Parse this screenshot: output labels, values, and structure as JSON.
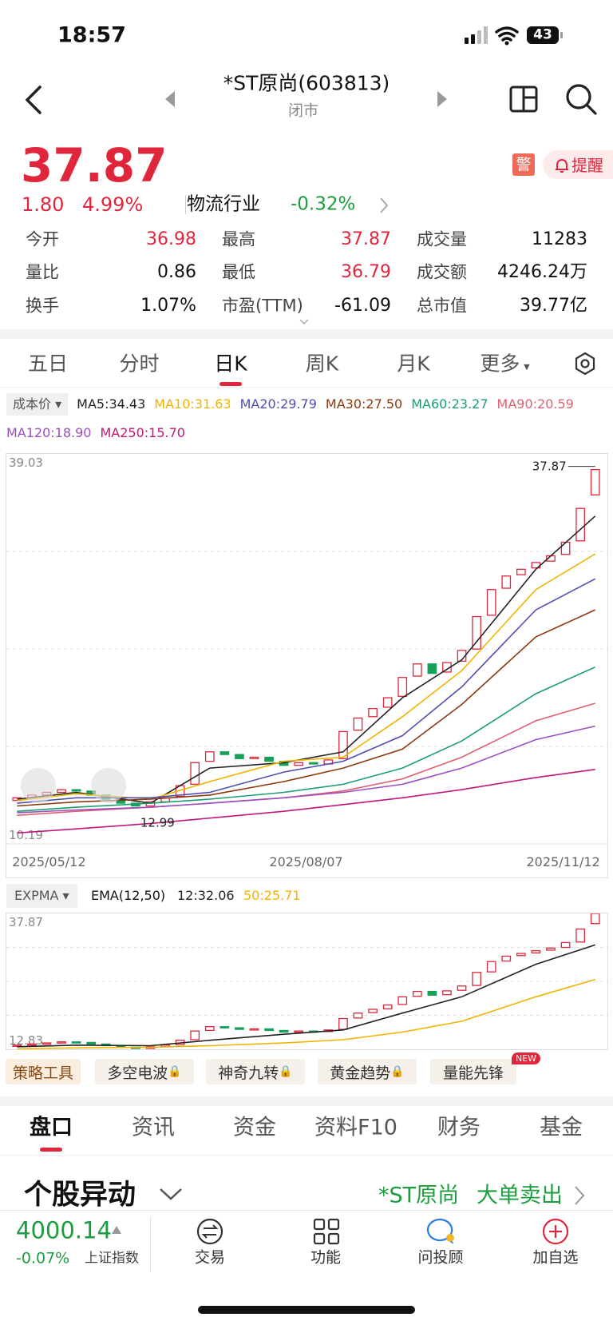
{
  "status": {
    "time": "18:57",
    "battery": "43"
  },
  "nav": {
    "title": "*ST原尚(603813)",
    "subtitle": "闭市"
  },
  "quote": {
    "price": "37.87",
    "change": "1.80",
    "pct": "4.99%",
    "industry": "物流行业",
    "industry_pct": "-0.32%",
    "alert": "警",
    "remind": "提醒"
  },
  "stats": [
    {
      "label": "今开",
      "value": "36.98",
      "color": "#e0263a"
    },
    {
      "label": "最高",
      "value": "37.87",
      "color": "#e0263a"
    },
    {
      "label": "成交量",
      "value": "11283",
      "color": "#111111"
    },
    {
      "label": "量比",
      "value": "0.86",
      "color": "#111111"
    },
    {
      "label": "最低",
      "value": "36.79",
      "color": "#e0263a"
    },
    {
      "label": "成交额",
      "value": "4246.24万",
      "color": "#111111"
    },
    {
      "label": "换手",
      "value": "1.07%",
      "color": "#111111"
    },
    {
      "label": "市盈(TTM)",
      "value": "-61.09",
      "color": "#111111"
    },
    {
      "label": "总市值",
      "value": "39.77亿",
      "color": "#111111"
    }
  ],
  "periods": [
    {
      "label": "五日"
    },
    {
      "label": "分时"
    },
    {
      "label": "日K"
    },
    {
      "label": "周K"
    },
    {
      "label": "月K"
    },
    {
      "label": "更多",
      "dropdown": true
    }
  ],
  "active_period": 2,
  "ma_legend": {
    "selector": "成本价",
    "items": [
      "MA5:34.43",
      "MA10:31.63",
      "MA20:29.79",
      "MA30:27.50",
      "MA60:23.27",
      "MA90:20.59",
      "MA120:18.90",
      "MA250:15.70"
    ]
  },
  "main_chart": {
    "type": "candlestick",
    "ylim": [
      10.19,
      39.03
    ],
    "yticks": [
      39.03,
      10.19
    ],
    "xticks": [
      {
        "value": 0,
        "label": "2025/05/12"
      },
      {
        "value": 19.5,
        "label": "2025/08/07"
      },
      {
        "value": 39,
        "label": "2025/11/12"
      }
    ],
    "annotations": {
      "high": "37.87",
      "low": "12.99"
    },
    "open": [
      13.4,
      13.6,
      13.8,
      14.0,
      14.2,
      14.1,
      13.8,
      13.5,
      13.2,
      13.0,
      13.3,
      13.7,
      14.6,
      16.3,
      17.0,
      16.8,
      16.5,
      16.6,
      16.3,
      16.0,
      16.2,
      16.1,
      16.5,
      18.6,
      19.6,
      20.3,
      21.1,
      22.6,
      23.5,
      22.9,
      23.7,
      24.6,
      27.1,
      29.1,
      30.1,
      30.6,
      31.1,
      31.6,
      32.6,
      36.0
    ],
    "close": [
      13.6,
      13.8,
      14.0,
      14.2,
      14.1,
      13.8,
      13.5,
      13.2,
      13.0,
      13.3,
      13.6,
      14.5,
      16.2,
      17.0,
      16.8,
      16.5,
      16.6,
      16.3,
      16.0,
      16.2,
      16.1,
      16.4,
      18.5,
      19.5,
      20.2,
      21.0,
      22.5,
      23.5,
      22.8,
      23.6,
      24.5,
      27.0,
      29.0,
      30.0,
      30.5,
      31.0,
      31.5,
      32.5,
      35.0,
      37.87
    ],
    "line_x": [
      0,
      4,
      9,
      13,
      18,
      22,
      26,
      30,
      35,
      39
    ],
    "series": [
      {
        "name": "MA5",
        "color": "#222222",
        "values": [
          13.5,
          14.0,
          13.2,
          15.8,
          16.2,
          17.0,
          21.0,
          23.8,
          30.5,
          34.43
        ]
      },
      {
        "name": "MA10",
        "color": "#f0b400",
        "values": [
          13.4,
          13.9,
          13.5,
          14.8,
          16.3,
          16.6,
          19.6,
          23.0,
          29.0,
          31.63
        ]
      },
      {
        "name": "MA20",
        "color": "#4f4fb3",
        "values": [
          13.2,
          13.6,
          13.6,
          14.0,
          15.5,
          16.3,
          18.2,
          21.8,
          27.5,
          29.79
        ]
      },
      {
        "name": "MA30",
        "color": "#8b3a0e",
        "values": [
          13.0,
          13.3,
          13.5,
          13.8,
          14.8,
          15.8,
          17.2,
          20.5,
          25.5,
          27.5
        ]
      },
      {
        "name": "MA60",
        "color": "#1a9e6e",
        "values": [
          12.6,
          12.9,
          13.2,
          13.5,
          14.0,
          14.6,
          15.8,
          17.8,
          21.3,
          23.27
        ]
      },
      {
        "name": "MA90",
        "color": "#e06070",
        "values": [
          12.3,
          12.6,
          12.9,
          13.2,
          13.6,
          14.1,
          15.0,
          16.6,
          19.3,
          20.59
        ]
      },
      {
        "name": "MA120",
        "color": "#9a4fc0",
        "values": [
          12.5,
          12.7,
          12.9,
          13.2,
          13.6,
          14.0,
          14.6,
          15.8,
          17.9,
          18.9
        ]
      },
      {
        "name": "MA250",
        "color": "#c0187a",
        "values": [
          11.0,
          11.3,
          11.7,
          12.1,
          12.6,
          13.1,
          13.6,
          14.2,
          15.1,
          15.7
        ]
      }
    ]
  },
  "sub_chart": {
    "selector": "EXPMA",
    "legend": {
      "title": "EMA(12,50)",
      "items": [
        "12:32.06",
        "50:25.71"
      ]
    },
    "ylim": [
      12.83,
      37.87
    ],
    "yticks": [
      37.87,
      12.83
    ],
    "series": [
      {
        "color": "#222222",
        "values": [
          13.3,
          13.6,
          13.5,
          14.5,
          15.6,
          16.4,
          19.5,
          22.5,
          28.5,
          32.06
        ]
      },
      {
        "color": "#f0b400",
        "values": [
          12.9,
          13.1,
          13.2,
          13.5,
          14.0,
          14.6,
          16.0,
          18.0,
          22.5,
          25.71
        ]
      }
    ]
  },
  "tools": [
    {
      "label": "策略工具"
    },
    {
      "label": "多空电波",
      "locked": true
    },
    {
      "label": "神奇九转",
      "locked": true
    },
    {
      "label": "黄金趋势",
      "locked": true
    },
    {
      "label": "量能先锋",
      "badge": "NEW"
    }
  ],
  "tabs": [
    "盘口",
    "资讯",
    "资金",
    "资料F10",
    "财务",
    "基金"
  ],
  "active_tab": 0,
  "section": {
    "title": "个股异动",
    "stock": "*ST原尚",
    "event": "大单卖出"
  },
  "index": {
    "value": "4000.14",
    "pct": "-0.07%",
    "name": "上证指数"
  },
  "actions": [
    "交易",
    "功能",
    "问投顾",
    "加自选"
  ]
}
